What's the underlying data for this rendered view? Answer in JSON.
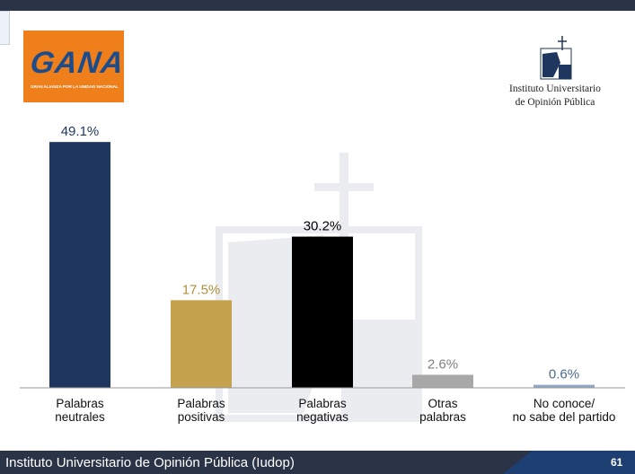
{
  "logo": {
    "text": "GANA",
    "tagline": "GRAN ALIANZA POR LA UNIDAD NACIONAL"
  },
  "institute": {
    "line1": "Instituto Universitario",
    "line2": "de Opinión Pública"
  },
  "footer": {
    "text": "Instituto Universitario de Opinión Pública (Iudop)",
    "page": "61"
  },
  "colors": {
    "topbar": "#2b3447",
    "logo_bg": "#ef7f1a",
    "logo_text": "#1d4c8c",
    "axis": "#999999"
  },
  "chart_data": {
    "type": "bar",
    "categories": [
      [
        "Palabras",
        "neutrales"
      ],
      [
        "Palabras",
        "positivas"
      ],
      [
        "Palabras",
        "negativas"
      ],
      [
        "Otras",
        "palabras"
      ],
      [
        "No conoce/",
        "no sabe del partido"
      ]
    ],
    "values": [
      49.1,
      17.5,
      30.2,
      2.6,
      0.6
    ],
    "value_labels": [
      "49.1%",
      "17.5%",
      "30.2%",
      "2.6%",
      "0.6%"
    ],
    "colors": [
      "#1f365f",
      "#c4a24e",
      "#000000",
      "#a8a8a8",
      "#8ea7c4"
    ],
    "label_colors": [
      "#1f365f",
      "#b08f3a",
      "#000000",
      "#808080",
      "#4a6a90"
    ],
    "ylim": [
      0,
      52
    ],
    "grid": false,
    "legend": "none"
  }
}
